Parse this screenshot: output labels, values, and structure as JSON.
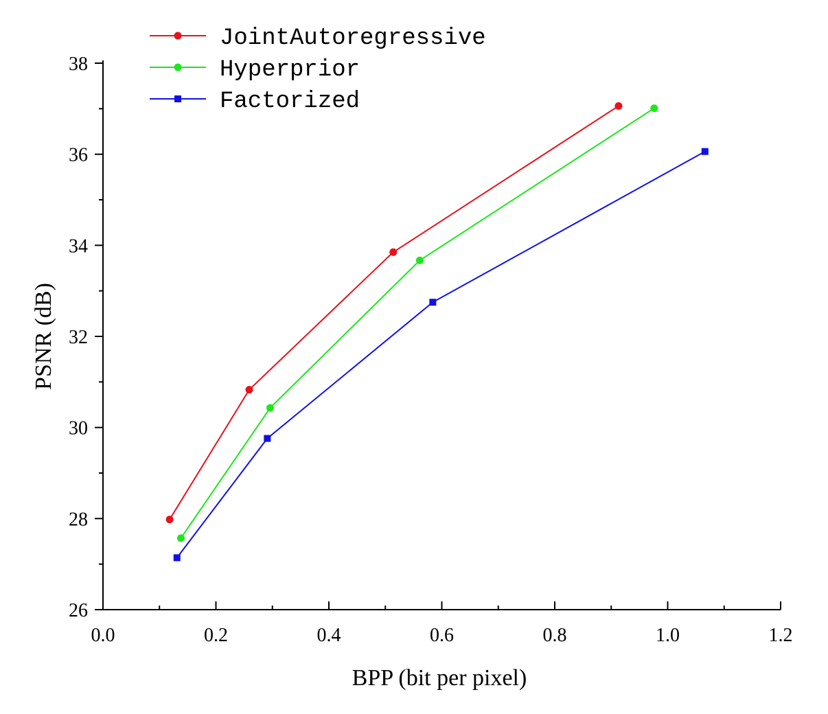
{
  "chart_data": {
    "type": "line",
    "xlabel": "BPP (bit per pixel)",
    "ylabel": "PSNR (dB)",
    "xlim": [
      0.0,
      1.2
    ],
    "ylim": [
      26,
      38
    ],
    "x_ticks": [
      "0.0",
      "0.2",
      "0.4",
      "0.6",
      "0.8",
      "1.0",
      "1.2"
    ],
    "y_ticks": [
      "26",
      "28",
      "30",
      "32",
      "34",
      "36",
      "38"
    ],
    "grid": false,
    "legend_position": "top-left",
    "series": [
      {
        "name": "JointAutoregressive",
        "color": "#e8121a",
        "marker": "circle",
        "points": [
          [
            0.118,
            27.98
          ],
          [
            0.259,
            30.83
          ],
          [
            0.514,
            33.85
          ],
          [
            0.913,
            37.06
          ]
        ]
      },
      {
        "name": "Hyperprior",
        "color": "#1be81b",
        "marker": "circle",
        "points": [
          [
            0.138,
            27.57
          ],
          [
            0.296,
            30.43
          ],
          [
            0.561,
            33.67
          ],
          [
            0.976,
            37.01
          ]
        ]
      },
      {
        "name": "Factorized",
        "color": "#1010e8",
        "marker": "square",
        "points": [
          [
            0.131,
            27.14
          ],
          [
            0.291,
            29.76
          ],
          [
            0.584,
            32.75
          ],
          [
            1.066,
            36.06
          ]
        ]
      }
    ]
  }
}
